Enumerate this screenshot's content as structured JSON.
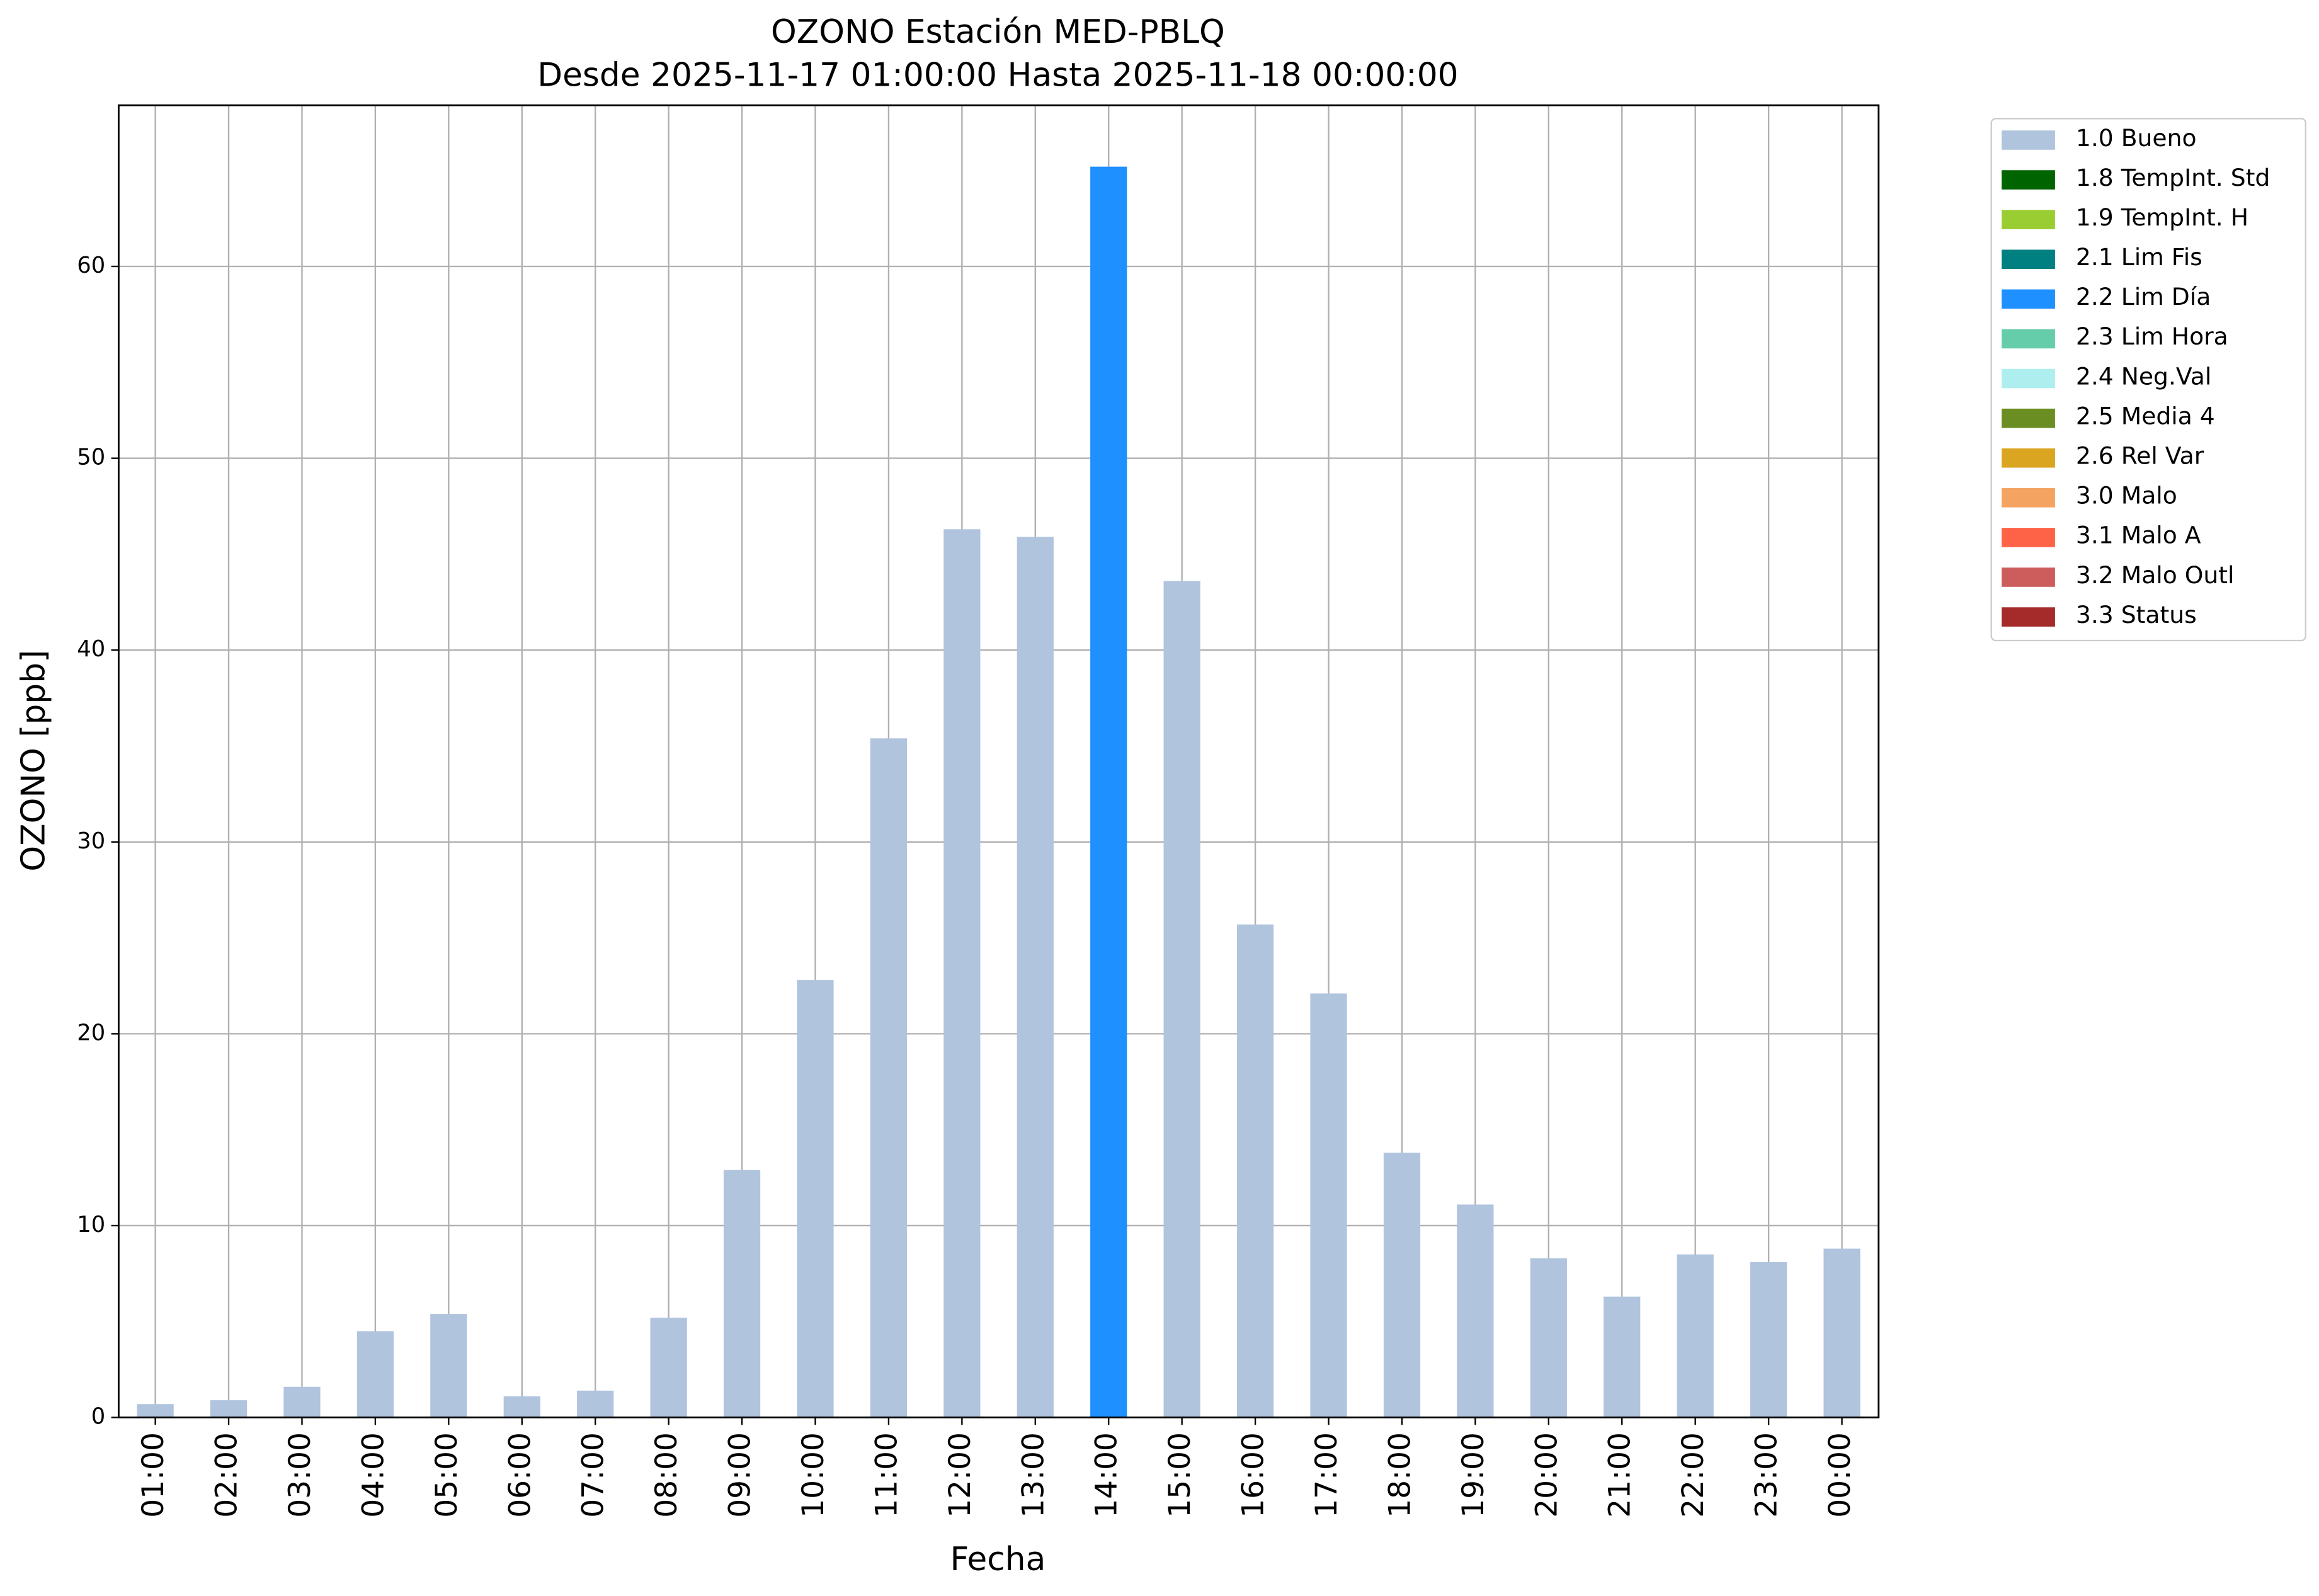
{
  "chart_data": {
    "type": "bar",
    "title": "OZONO Estación MED-PBLQ",
    "subtitle": "Desde 2025-11-17 01:00:00 Hasta 2025-11-18 00:00:00",
    "x_label": "Fecha",
    "y_label": "OZONO [ppb]",
    "categories": [
      "01:00",
      "02:00",
      "03:00",
      "04:00",
      "05:00",
      "06:00",
      "07:00",
      "08:00",
      "09:00",
      "10:00",
      "11:00",
      "12:00",
      "13:00",
      "14:00",
      "15:00",
      "16:00",
      "17:00",
      "18:00",
      "19:00",
      "20:00",
      "21:00",
      "22:00",
      "23:00",
      "00:00"
    ],
    "ylim": [
      0,
      68.4
    ],
    "yticks": [
      0,
      10,
      20,
      30,
      40,
      50,
      60
    ],
    "grid": true,
    "legend": "outside-upper-right",
    "series": [
      {
        "name": "1.0 Bueno",
        "color": "#b0c4de",
        "values": [
          0.7,
          0.9,
          1.6,
          4.5,
          5.4,
          1.1,
          1.4,
          5.2,
          12.9,
          22.8,
          35.4,
          46.3,
          45.9,
          null,
          43.6,
          25.7,
          22.1,
          13.8,
          11.1,
          8.3,
          6.3,
          8.5,
          8.1,
          8.8
        ]
      },
      {
        "name": "1.8 TempInt. Std",
        "color": "#006400",
        "values": [
          null,
          null,
          null,
          null,
          null,
          null,
          null,
          null,
          null,
          null,
          null,
          null,
          null,
          null,
          null,
          null,
          null,
          null,
          null,
          null,
          null,
          null,
          null,
          null
        ]
      },
      {
        "name": "1.9 TempInt. H",
        "color": "#9acd32",
        "values": [
          null,
          null,
          null,
          null,
          null,
          null,
          null,
          null,
          null,
          null,
          null,
          null,
          null,
          null,
          null,
          null,
          null,
          null,
          null,
          null,
          null,
          null,
          null,
          null
        ]
      },
      {
        "name": "2.1 Lim Fis",
        "color": "#008080",
        "values": [
          null,
          null,
          null,
          null,
          null,
          null,
          null,
          null,
          null,
          null,
          null,
          null,
          null,
          null,
          null,
          null,
          null,
          null,
          null,
          null,
          null,
          null,
          null,
          null
        ]
      },
      {
        "name": "2.2 Lim Día",
        "color": "#1e90ff",
        "values": [
          null,
          null,
          null,
          null,
          null,
          null,
          null,
          null,
          null,
          null,
          null,
          null,
          null,
          65.2,
          null,
          null,
          null,
          null,
          null,
          null,
          null,
          null,
          null,
          null
        ]
      },
      {
        "name": "2.3 Lim Hora",
        "color": "#66cdaa",
        "values": [
          null,
          null,
          null,
          null,
          null,
          null,
          null,
          null,
          null,
          null,
          null,
          null,
          null,
          null,
          null,
          null,
          null,
          null,
          null,
          null,
          null,
          null,
          null,
          null
        ]
      },
      {
        "name": "2.4 Neg.Val",
        "color": "#afeeee",
        "values": [
          null,
          null,
          null,
          null,
          null,
          null,
          null,
          null,
          null,
          null,
          null,
          null,
          null,
          null,
          null,
          null,
          null,
          null,
          null,
          null,
          null,
          null,
          null,
          null
        ]
      },
      {
        "name": "2.5 Media 4",
        "color": "#6b8e23",
        "values": [
          null,
          null,
          null,
          null,
          null,
          null,
          null,
          null,
          null,
          null,
          null,
          null,
          null,
          null,
          null,
          null,
          null,
          null,
          null,
          null,
          null,
          null,
          null,
          null
        ]
      },
      {
        "name": "2.6 Rel Var",
        "color": "#daa520",
        "values": [
          null,
          null,
          null,
          null,
          null,
          null,
          null,
          null,
          null,
          null,
          null,
          null,
          null,
          null,
          null,
          null,
          null,
          null,
          null,
          null,
          null,
          null,
          null,
          null
        ]
      },
      {
        "name": "3.0 Malo",
        "color": "#f4a460",
        "values": [
          null,
          null,
          null,
          null,
          null,
          null,
          null,
          null,
          null,
          null,
          null,
          null,
          null,
          null,
          null,
          null,
          null,
          null,
          null,
          null,
          null,
          null,
          null,
          null
        ]
      },
      {
        "name": "3.1 Malo A",
        "color": "#ff6347",
        "values": [
          null,
          null,
          null,
          null,
          null,
          null,
          null,
          null,
          null,
          null,
          null,
          null,
          null,
          null,
          null,
          null,
          null,
          null,
          null,
          null,
          null,
          null,
          null,
          null
        ]
      },
      {
        "name": "3.2 Malo Outl",
        "color": "#cd5c5c",
        "values": [
          null,
          null,
          null,
          null,
          null,
          null,
          null,
          null,
          null,
          null,
          null,
          null,
          null,
          null,
          null,
          null,
          null,
          null,
          null,
          null,
          null,
          null,
          null,
          null
        ]
      },
      {
        "name": "3.3 Status",
        "color": "#a52a2a",
        "values": [
          null,
          null,
          null,
          null,
          null,
          null,
          null,
          null,
          null,
          null,
          null,
          null,
          null,
          null,
          null,
          null,
          null,
          null,
          null,
          null,
          null,
          null,
          null,
          null
        ]
      }
    ]
  }
}
